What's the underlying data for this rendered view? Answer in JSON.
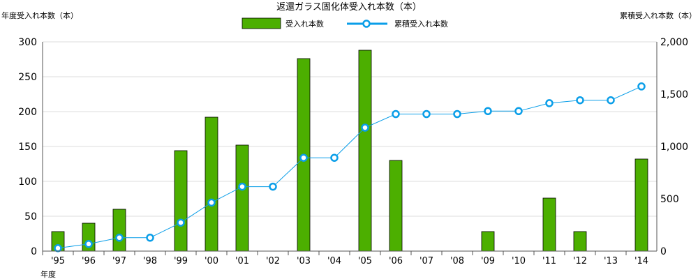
{
  "chart_data": {
    "type": "bar+line",
    "title": "返還ガラス固化体受入れ本数（本）",
    "ylabel_left": "年度受入れ本数（本）",
    "ylabel_right": "累積受入れ本数（本）",
    "xlabel": "年度",
    "categories": [
      "'95",
      "'96",
      "'97",
      "'98",
      "'99",
      "'00",
      "'01",
      "'02",
      "'03",
      "'04",
      "'05",
      "'06",
      "'07",
      "'08",
      "'09",
      "'10",
      "'11",
      "'12",
      "'13",
      "'14"
    ],
    "series": [
      {
        "name": "受入れ本数",
        "type": "bar",
        "axis": "left",
        "color": "#4caf00",
        "values": [
          28,
          40,
          60,
          0,
          144,
          192,
          152,
          0,
          276,
          0,
          288,
          130,
          0,
          0,
          28,
          0,
          76,
          28,
          0,
          132
        ]
      },
      {
        "name": "累積受入れ本数",
        "type": "line",
        "axis": "right",
        "color": "#0a9ee8",
        "values": [
          28,
          68,
          128,
          128,
          272,
          464,
          616,
          616,
          892,
          892,
          1180,
          1310,
          1310,
          1310,
          1338,
          1338,
          1414,
          1442,
          1442,
          1574
        ]
      }
    ],
    "ylim_left": [
      0,
      300
    ],
    "yticks_left": [
      "0",
      "50",
      "100",
      "150",
      "200",
      "250",
      "300"
    ],
    "ylim_right": [
      0,
      2000
    ],
    "yticks_right": [
      "0",
      "500",
      "1,000",
      "1,500",
      "2,000"
    ],
    "grid": true,
    "legend": "top-center"
  }
}
